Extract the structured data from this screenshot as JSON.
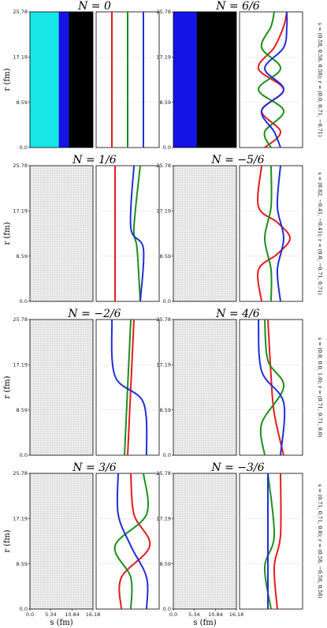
{
  "chart_data": {
    "type": "line",
    "xlabel": "s (fm)",
    "ylabel": "r (fm)",
    "xticks": [
      "0.0",
      "5.34",
      "10.84",
      "16.18"
    ],
    "yticks": [
      "0.0",
      "8.59",
      "17.19",
      "25.78"
    ],
    "xlim": [
      0,
      16.18
    ],
    "ylim": [
      0,
      25.78
    ],
    "series_colors": {
      "red": "#e41a1c",
      "green": "#1a8f1a",
      "blue": "#1f2fd6"
    },
    "region_colors": {
      "black": "#000000",
      "cyan": "#19e6e6",
      "blue": "#1414e6",
      "red": "#dd0f0f",
      "green": "#10c410",
      "olive": "#b5b500",
      "magenta": "#ef17ef",
      "grey": "#d9d9d9"
    },
    "row_labels": [
      "s = (0.58, 0.58, 0.58); r = (0.0, 0.71, −0.71)",
      "s = (0.82, −0.41, −0.41); r = (0.0, −0.71, 0.71)",
      "s = (0.0, 0.0, 1.0); r = (0.71, 0.71, 0.0)",
      "s = (0.71, 0.71, 0.0); r = (0.58, −0.58, 0.58)"
    ],
    "panels": [
      {
        "title": "N = 0",
        "r": [
          0,
          25.78
        ],
        "regions": [
          {
            "color": "cyan",
            "right": [
              7.4,
              7.4
            ]
          },
          {
            "color": "blue",
            "right": [
              10.0,
              10.0
            ]
          },
          {
            "color": "black",
            "right": [
              16.18,
              16.18
            ]
          }
        ],
        "curves": {
          "red": {
            "r": [
              0,
              25.78
            ],
            "x": [
              0.25,
              0.25
            ]
          },
          "green": {
            "r": [
              0,
              25.78
            ],
            "x": [
              0.5,
              0.5
            ]
          },
          "blue": {
            "r": [
              0,
              25.78
            ],
            "x": [
              0.75,
              0.75
            ]
          }
        }
      },
      {
        "title": "N = 6/6",
        "r": [
          0,
          3,
          5,
          8,
          11,
          14,
          16.5,
          19.5,
          22.5,
          25.78
        ],
        "regions": [
          {
            "color": "blue",
            "right": [
              7.5,
              7.5,
              7.5,
              7.5,
              7.5,
              7.5,
              7.5,
              7.5,
              7.5,
              7.5
            ]
          },
          {
            "color": "magenta",
            "right": [
              7.8,
              7.8,
              7.8,
              7.8,
              7.8,
              7.8,
              7.8,
              7.8,
              7.8,
              7.8
            ]
          },
          {
            "color": "red",
            "right": [
              6.0,
              6.0,
              6.0,
              6.0,
              6.0,
              6.0,
              6.0,
              6.0,
              6.0,
              6.0
            ]
          },
          {
            "color": "black",
            "right": [
              16.18,
              16.18,
              16.18,
              16.18,
              16.18,
              16.18,
              16.18,
              16.18,
              16.18,
              16.18
            ]
          }
        ],
        "curves": {
          "red": {
            "r": [
              0,
              3,
              7,
              11,
              15,
              19,
              23,
              25.78
            ],
            "x": [
              0.4,
              0.65,
              0.35,
              0.7,
              0.3,
              0.55,
              0.7,
              0.75
            ]
          },
          "green": {
            "r": [
              0,
              3,
              7,
              11,
              15,
              19,
              23,
              25.78
            ],
            "x": [
              0.5,
              0.4,
              0.7,
              0.3,
              0.65,
              0.35,
              0.5,
              0.55
            ]
          },
          "blue": {
            "r": [
              0,
              3,
              7,
              11,
              15,
              19,
              23,
              25.78
            ],
            "x": [
              0.65,
              0.55,
              0.35,
              0.7,
              0.4,
              0.7,
              0.75,
              0.75
            ]
          }
        }
      },
      {
        "title": "N = 1/6",
        "r": [
          0,
          25.78
        ],
        "regions": [],
        "curves": {
          "red": {
            "r": [
              0,
              25.78
            ],
            "x": [
              0.3,
              0.3
            ]
          },
          "green": {
            "r": [
              0,
              10,
              14,
              25.78
            ],
            "x": [
              0.7,
              0.65,
              0.6,
              0.7
            ]
          },
          "blue": {
            "r": [
              0,
              10,
              14,
              25.78
            ],
            "x": [
              0.7,
              0.75,
              0.55,
              0.6
            ]
          }
        }
      },
      {
        "title": "N = −5/6",
        "r": [
          0,
          25.78
        ],
        "regions": [],
        "curves": {
          "red": {
            "r": [
              0,
              6,
              9,
              12,
              15,
              18,
              25.78
            ],
            "x": [
              0.35,
              0.3,
              0.6,
              0.8,
              0.6,
              0.3,
              0.35
            ]
          },
          "green": {
            "r": [
              0,
              6,
              12,
              18,
              25.78
            ],
            "x": [
              0.5,
              0.5,
              0.4,
              0.5,
              0.5
            ]
          },
          "blue": {
            "r": [
              0,
              6,
              12,
              18,
              25.78
            ],
            "x": [
              0.65,
              0.6,
              0.7,
              0.6,
              0.65
            ]
          }
        }
      },
      {
        "title": "N = −2/6",
        "r": [
          0,
          25.78
        ],
        "regions": [],
        "curves": {
          "red": {
            "r": [
              0,
              25.78
            ],
            "x": [
              0.5,
              0.6
            ]
          },
          "green": {
            "r": [
              0,
              25.78
            ],
            "x": [
              0.45,
              0.55
            ]
          },
          "blue": {
            "r": [
              0,
              10,
              15,
              25.78
            ],
            "x": [
              0.8,
              0.75,
              0.3,
              0.25
            ]
          }
        }
      },
      {
        "title": "N = 4/6",
        "r": [
          0,
          25.78
        ],
        "regions": [],
        "curves": {
          "red": {
            "r": [
              0,
              8,
              15,
              25.78
            ],
            "x": [
              0.7,
              0.55,
              0.5,
              0.45
            ]
          },
          "green": {
            "r": [
              0,
              6,
              13,
              18,
              25.78
            ],
            "x": [
              0.4,
              0.35,
              0.7,
              0.45,
              0.4
            ]
          },
          "blue": {
            "r": [
              0,
              10,
              16,
              25.78
            ],
            "x": [
              0.65,
              0.7,
              0.35,
              0.3
            ]
          }
        }
      },
      {
        "title": "N = 3/6",
        "r": [
          0,
          25.78
        ],
        "regions": [],
        "curves": {
          "red": {
            "r": [
              0,
              6,
              12,
              18,
              25.78
            ],
            "x": [
              0.4,
              0.4,
              0.85,
              0.6,
              0.55
            ]
          },
          "green": {
            "r": [
              0,
              6,
              12,
              18,
              25.78
            ],
            "x": [
              0.55,
              0.55,
              0.3,
              0.8,
              0.75
            ]
          },
          "blue": {
            "r": [
              0,
              6,
              12,
              18,
              25.78
            ],
            "x": [
              0.8,
              0.8,
              0.55,
              0.35,
              0.35
            ]
          }
        }
      },
      {
        "title": "N = −3/6",
        "r": [
          0,
          25.78
        ],
        "regions": [],
        "curves": {
          "red": {
            "r": [
              0,
              8,
              14,
              25.78
            ],
            "x": [
              0.6,
              0.55,
              0.65,
              0.65
            ]
          },
          "green": {
            "r": [
              0,
              8,
              14,
              25.78
            ],
            "x": [
              0.5,
              0.4,
              0.55,
              0.45
            ]
          },
          "blue": {
            "r": [
              0,
              25.78
            ],
            "x": [
              0.45,
              0.45
            ]
          }
        }
      }
    ]
  }
}
